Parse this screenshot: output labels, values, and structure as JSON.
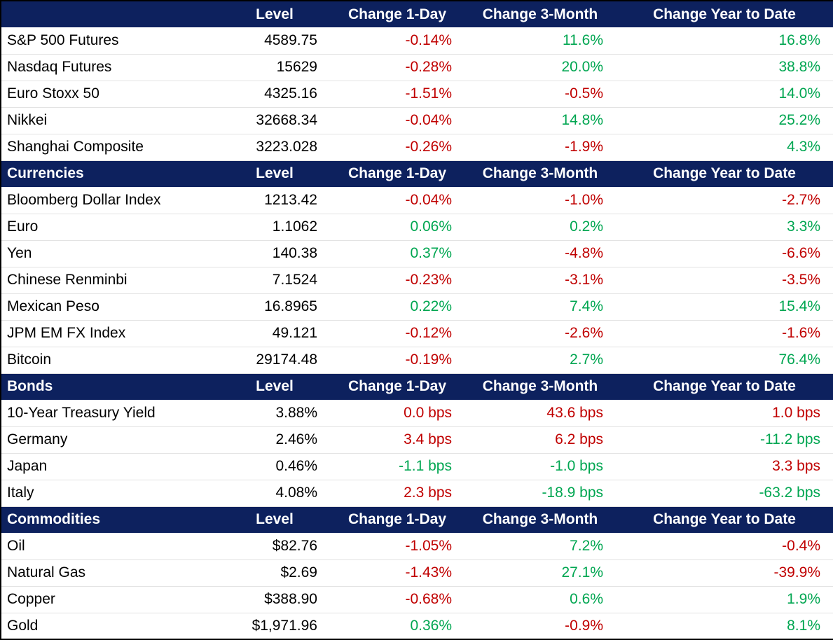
{
  "chart_data": {
    "type": "table",
    "columns": [
      "Level",
      "Change 1-Day",
      "Change 3-Month",
      "Change Year to Date"
    ],
    "colors": {
      "header_bg": "#0D215E",
      "header_text": "#FFFFFF",
      "positive": "#00A651",
      "negative": "#C00000",
      "text": "#000000",
      "row_separator": "#E3E3E3",
      "outer_border": "#000000",
      "background": "#FFFFFF"
    },
    "sections": [
      {
        "title": "",
        "rows": [
          {
            "label": "S&P 500 Futures",
            "level": "4589.75",
            "changes": [
              {
                "value": "-0.14%",
                "color": "negative"
              },
              {
                "value": "11.6%",
                "color": "positive"
              },
              {
                "value": "16.8%",
                "color": "positive"
              }
            ]
          },
          {
            "label": "Nasdaq Futures",
            "level": "15629",
            "changes": [
              {
                "value": "-0.28%",
                "color": "negative"
              },
              {
                "value": "20.0%",
                "color": "positive"
              },
              {
                "value": "38.8%",
                "color": "positive"
              }
            ]
          },
          {
            "label": "Euro Stoxx 50",
            "level": "4325.16",
            "changes": [
              {
                "value": "-1.51%",
                "color": "negative"
              },
              {
                "value": "-0.5%",
                "color": "negative"
              },
              {
                "value": "14.0%",
                "color": "positive"
              }
            ]
          },
          {
            "label": "Nikkei",
            "level": "32668.34",
            "changes": [
              {
                "value": "-0.04%",
                "color": "negative"
              },
              {
                "value": "14.8%",
                "color": "positive"
              },
              {
                "value": "25.2%",
                "color": "positive"
              }
            ]
          },
          {
            "label": "Shanghai Composite",
            "level": "3223.028",
            "changes": [
              {
                "value": "-0.26%",
                "color": "negative"
              },
              {
                "value": "-1.9%",
                "color": "negative"
              },
              {
                "value": "4.3%",
                "color": "positive"
              }
            ]
          }
        ]
      },
      {
        "title": "Currencies",
        "rows": [
          {
            "label": "Bloomberg Dollar Index",
            "level": "1213.42",
            "changes": [
              {
                "value": "-0.04%",
                "color": "negative"
              },
              {
                "value": "-1.0%",
                "color": "negative"
              },
              {
                "value": "-2.7%",
                "color": "negative"
              }
            ]
          },
          {
            "label": "Euro",
            "level": "1.1062",
            "changes": [
              {
                "value": "0.06%",
                "color": "positive"
              },
              {
                "value": "0.2%",
                "color": "positive"
              },
              {
                "value": "3.3%",
                "color": "positive"
              }
            ]
          },
          {
            "label": "Yen",
            "level": "140.38",
            "changes": [
              {
                "value": "0.37%",
                "color": "positive"
              },
              {
                "value": "-4.8%",
                "color": "negative"
              },
              {
                "value": "-6.6%",
                "color": "negative"
              }
            ]
          },
          {
            "label": "Chinese Renminbi",
            "level": "7.1524",
            "changes": [
              {
                "value": "-0.23%",
                "color": "negative"
              },
              {
                "value": "-3.1%",
                "color": "negative"
              },
              {
                "value": "-3.5%",
                "color": "negative"
              }
            ]
          },
          {
            "label": "Mexican Peso",
            "level": "16.8965",
            "changes": [
              {
                "value": "0.22%",
                "color": "positive"
              },
              {
                "value": "7.4%",
                "color": "positive"
              },
              {
                "value": "15.4%",
                "color": "positive"
              }
            ]
          },
          {
            "label": "JPM EM FX Index",
            "level": "49.121",
            "changes": [
              {
                "value": "-0.12%",
                "color": "negative"
              },
              {
                "value": "-2.6%",
                "color": "negative"
              },
              {
                "value": "-1.6%",
                "color": "negative"
              }
            ]
          },
          {
            "label": "Bitcoin",
            "level": "29174.48",
            "changes": [
              {
                "value": "-0.19%",
                "color": "negative"
              },
              {
                "value": "2.7%",
                "color": "positive"
              },
              {
                "value": "76.4%",
                "color": "positive"
              }
            ]
          }
        ]
      },
      {
        "title": "Bonds",
        "rows": [
          {
            "label": "10-Year Treasury Yield",
            "level": "3.88%",
            "changes": [
              {
                "value": "0.0 bps",
                "color": "negative"
              },
              {
                "value": "43.6 bps",
                "color": "negative"
              },
              {
                "value": "1.0 bps",
                "color": "negative"
              }
            ]
          },
          {
            "label": "Germany",
            "level": "2.46%",
            "changes": [
              {
                "value": "3.4 bps",
                "color": "negative"
              },
              {
                "value": "6.2 bps",
                "color": "negative"
              },
              {
                "value": "-11.2 bps",
                "color": "positive"
              }
            ]
          },
          {
            "label": "Japan",
            "level": "0.46%",
            "changes": [
              {
                "value": "-1.1 bps",
                "color": "positive"
              },
              {
                "value": "-1.0 bps",
                "color": "positive"
              },
              {
                "value": "3.3 bps",
                "color": "negative"
              }
            ]
          },
          {
            "label": "Italy",
            "level": "4.08%",
            "changes": [
              {
                "value": "2.3 bps",
                "color": "negative"
              },
              {
                "value": "-18.9 bps",
                "color": "positive"
              },
              {
                "value": "-63.2 bps",
                "color": "positive"
              }
            ]
          }
        ]
      },
      {
        "title": "Commodities",
        "rows": [
          {
            "label": "Oil",
            "level": "$82.76",
            "changes": [
              {
                "value": "-1.05%",
                "color": "negative"
              },
              {
                "value": "7.2%",
                "color": "positive"
              },
              {
                "value": "-0.4%",
                "color": "negative"
              }
            ]
          },
          {
            "label": "Natural Gas",
            "level": "$2.69",
            "changes": [
              {
                "value": "-1.43%",
                "color": "negative"
              },
              {
                "value": "27.1%",
                "color": "positive"
              },
              {
                "value": "-39.9%",
                "color": "negative"
              }
            ]
          },
          {
            "label": "Copper",
            "level": "$388.90",
            "changes": [
              {
                "value": "-0.68%",
                "color": "negative"
              },
              {
                "value": "0.6%",
                "color": "positive"
              },
              {
                "value": "1.9%",
                "color": "positive"
              }
            ]
          },
          {
            "label": "Gold",
            "level": "$1,971.96",
            "changes": [
              {
                "value": "0.36%",
                "color": "positive"
              },
              {
                "value": "-0.9%",
                "color": "negative"
              },
              {
                "value": "8.1%",
                "color": "positive"
              }
            ]
          }
        ]
      }
    ]
  }
}
